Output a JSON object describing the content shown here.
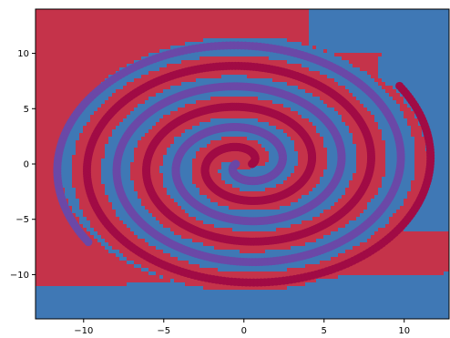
{
  "chart_data": {
    "type": "heatmap",
    "title": "",
    "xlabel": "",
    "ylabel": "",
    "xlim": [
      -13,
      12.8
    ],
    "ylim": [
      -14,
      14
    ],
    "x_ticks": [
      -10,
      -5,
      0,
      5,
      10
    ],
    "x_tick_labels": [
      "−10",
      "−5",
      "0",
      "5",
      "10"
    ],
    "y_ticks": [
      -10,
      -5,
      0,
      5,
      10
    ],
    "y_tick_labels": [
      "−10",
      "−5",
      "0",
      "5",
      "10"
    ],
    "grid": false,
    "background": "decision regions of a two-class classifier",
    "region_colors": {
      "class_0": "#c5334a",
      "class_1": "#3f78b5"
    },
    "series": [
      {
        "color": "#a10b45",
        "marker_size": 9,
        "spiral": {
          "r_start": 0.5,
          "r_end": 12.0,
          "theta_start_deg": 0,
          "turns": 3.1,
          "direction": "counterclockwise"
        }
      },
      {
        "color": "#6b48a7",
        "marker_size": 9,
        "spiral": {
          "r_start": 0.5,
          "r_end": 12.0,
          "theta_start_deg": 180,
          "turns": 3.1,
          "direction": "counterclockwise"
        }
      }
    ]
  }
}
